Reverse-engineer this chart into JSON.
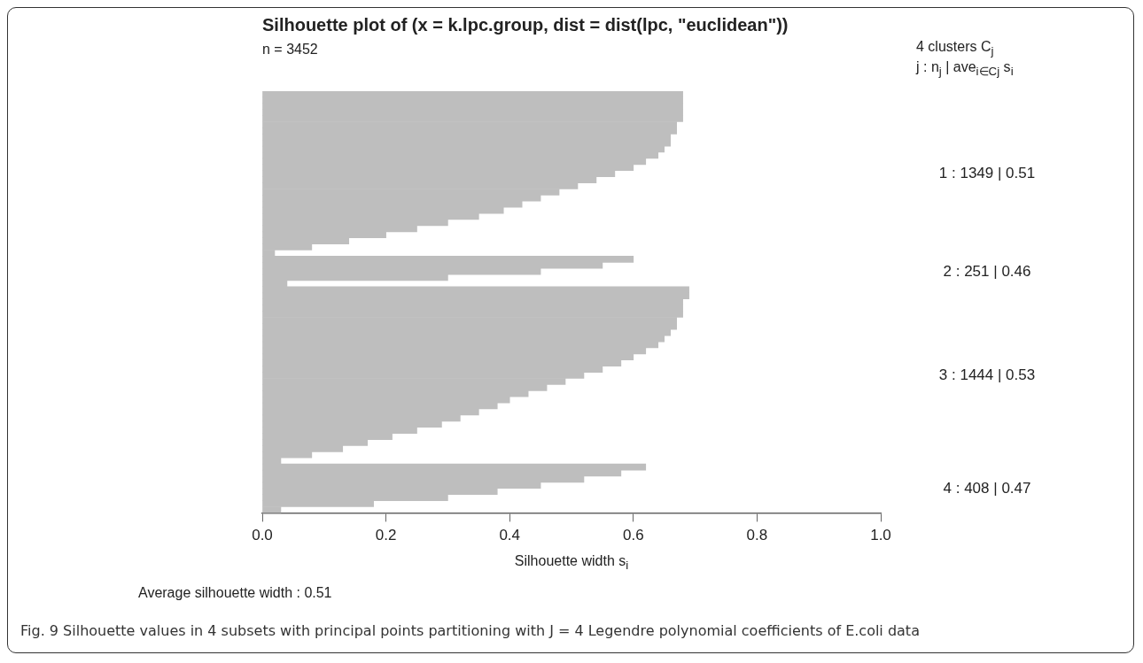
{
  "chart_data": {
    "type": "bar",
    "orientation": "horizontal",
    "title": "Silhouette plot of (x = k.lpc.group, dist = dist(lpc, \"euclidean\"))",
    "xlabel": "Silhouette width s$_{i}$",
    "categories": [
      null,
      null,
      null,
      null,
      null,
      null,
      null,
      null,
      null,
      null,
      null,
      null,
      null,
      null,
      null,
      null,
      null,
      null,
      null,
      null,
      null,
      null,
      null,
      null,
      null,
      null,
      null,
      null,
      null,
      null,
      null,
      null,
      null,
      null,
      null,
      null,
      null,
      null,
      null,
      null,
      null,
      null,
      null,
      null,
      null,
      null,
      null,
      null,
      null,
      null,
      null,
      null,
      null,
      null,
      null,
      null,
      null,
      null,
      null,
      null,
      null,
      null,
      null,
      null,
      null,
      null,
      null,
      null,
      null
    ],
    "values": [
      0.68,
      0.68,
      0.68,
      0.68,
      0.68,
      0.67,
      0.67,
      0.66,
      0.66,
      0.65,
      0.64,
      0.62,
      0.6,
      0.57,
      0.54,
      0.51,
      0.48,
      0.45,
      0.42,
      0.39,
      0.35,
      0.3,
      0.25,
      0.2,
      0.14,
      0.08,
      0.02,
      0.6,
      0.55,
      0.45,
      0.3,
      0.04,
      0.69,
      0.69,
      0.68,
      0.68,
      0.68,
      0.67,
      0.67,
      0.66,
      0.65,
      0.64,
      0.62,
      0.6,
      0.58,
      0.55,
      0.52,
      0.49,
      0.46,
      0.43,
      0.4,
      0.38,
      0.35,
      0.32,
      0.29,
      0.25,
      0.21,
      0.17,
      0.13,
      0.08,
      0.03,
      0.62,
      0.58,
      0.52,
      0.45,
      0.38,
      0.3,
      0.18,
      0.03
    ],
    "color": "#bebebe",
    "xlim": [
      0,
      1
    ],
    "xticks": [
      {
        "value": 0,
        "label": "0.0"
      },
      {
        "value": 0.2,
        "label": "0.2"
      },
      {
        "value": 0.4,
        "label": "0.4"
      },
      {
        "value": 0.6,
        "label": "0.6"
      },
      {
        "value": 0.8,
        "label": "0.8"
      },
      {
        "value": 1,
        "label": "1.0"
      }
    ],
    "tick_labels": "x",
    "legend": false,
    "annotations": [
      "n = 3452",
      "4  clusters  C$_{j}$",
      "j :  n$_{j}$ | ave$_{i∈Cj}$  s$_{i}$",
      "1 :   1349  |  0.51",
      "2 :   251  |  0.46",
      "3 :   1444  |  0.53",
      "4 :   408  |  0.47",
      "Average silhouette width :  0.51",
      "Fig. 9 Silhouette values in 4 subsets with principal points partitioning with J = 4 Legendre polynomial coefficients of E.coli data"
    ]
  }
}
